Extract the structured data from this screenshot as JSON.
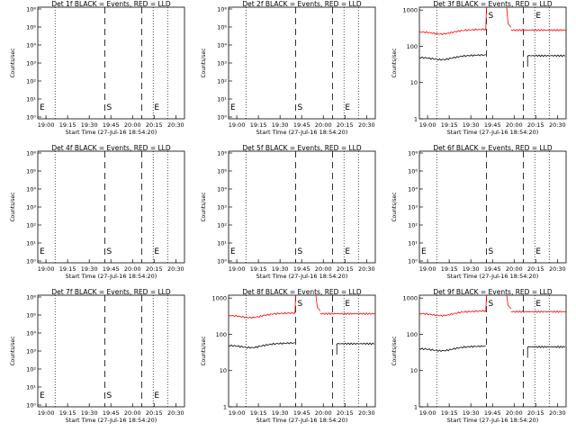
{
  "chart_data": [
    {
      "title": "Det 1f BLACK = Events, RED = LLD",
      "type": "line",
      "y_labels": [
        "10⁸",
        "10⁶",
        "10⁴",
        "10³",
        "10²",
        "10¹",
        "10⁰"
      ],
      "has_data": false,
      "xlabel": "Start Time (27-Jul-16 18:54:20)",
      "ylabel": "Counts/sec",
      "x_ticks": [
        "19:00",
        "19:15",
        "19:30",
        "19:45",
        "20:00",
        "20:15",
        "20:30"
      ],
      "markers": {
        "S": "S",
        "E": "E"
      }
    },
    {
      "title": "Det 2f BLACK = Events, RED = LLD",
      "type": "line",
      "y_labels": [
        "10⁸",
        "10⁶",
        "10⁴",
        "10³",
        "10²",
        "10¹",
        "10⁰"
      ],
      "has_data": false,
      "xlabel": "Start Time (27-Jul-16 18:54:20)",
      "ylabel": "Counts/sec",
      "x_ticks": [
        "19:00",
        "19:15",
        "19:30",
        "19:45",
        "20:00",
        "20:15",
        "20:30"
      ],
      "markers": {
        "S": "S",
        "E": "E"
      }
    },
    {
      "title": "Det 3f BLACK = Events, RED = LLD",
      "type": "line",
      "y_labels": [
        "1000",
        "100",
        "10",
        "1"
      ],
      "has_data": true,
      "series": [
        {
          "name": "Events",
          "color": "#000000",
          "level": 55
        },
        {
          "name": "LLD",
          "color": "#ff0000",
          "level": 280
        }
      ],
      "xlabel": "Start Time (27-Jul-16 18:54:20)",
      "ylabel": "Counts/sec",
      "x_ticks": [
        "19:00",
        "19:15",
        "19:30",
        "19:45",
        "20:00",
        "20:15",
        "20:30"
      ],
      "markers": {
        "S": "S",
        "E": "E"
      }
    },
    {
      "title": "Det 4f BLACK = Events, RED = LLD",
      "type": "line",
      "y_labels": [
        "10⁸",
        "10⁶",
        "10⁴",
        "10³",
        "10²",
        "10¹",
        "10⁰"
      ],
      "has_data": false,
      "xlabel": "Start Time (27-Jul-16 18:54:20)",
      "ylabel": "Counts/sec",
      "x_ticks": [
        "19:00",
        "19:15",
        "19:30",
        "19:45",
        "20:00",
        "20:15",
        "20:30"
      ],
      "markers": {
        "S": "S",
        "E": "E"
      }
    },
    {
      "title": "Det 5f BLACK = Events, RED = LLD",
      "type": "line",
      "y_labels": [
        "10⁸",
        "10⁶",
        "10⁴",
        "10³",
        "10²",
        "10¹",
        "10⁰"
      ],
      "has_data": false,
      "xlabel": "Start Time (27-Jul-16 18:54:20)",
      "ylabel": "Counts/sec",
      "x_ticks": [
        "19:00",
        "19:15",
        "19:30",
        "19:45",
        "20:00",
        "20:15",
        "20:30"
      ],
      "markers": {
        "S": "S",
        "E": "E"
      }
    },
    {
      "title": "Det 6f BLACK = Events, RED = LLD",
      "type": "line",
      "y_labels": [
        "10⁸",
        "10⁶",
        "10⁴",
        "10³",
        "10²",
        "10¹",
        "10⁰"
      ],
      "has_data": false,
      "xlabel": "Start Time (27-Jul-16 18:54:20)",
      "ylabel": "Counts/sec",
      "x_ticks": [
        "19:00",
        "19:15",
        "19:30",
        "19:45",
        "20:00",
        "20:15",
        "20:30"
      ],
      "markers": {
        "S": "S",
        "E": "E"
      }
    },
    {
      "title": "Det 7f BLACK = Events, RED = LLD",
      "type": "line",
      "y_labels": [
        "10⁸",
        "10⁶",
        "10⁴",
        "10³",
        "10²",
        "10¹",
        "10⁰"
      ],
      "has_data": false,
      "xlabel": "Start Time (27-Jul-16 18:54:20)",
      "ylabel": "Counts/sec",
      "x_ticks": [
        "19:00",
        "19:15",
        "19:30",
        "19:45",
        "20:00",
        "20:15",
        "20:30"
      ],
      "markers": {
        "S": "S",
        "E": "E"
      }
    },
    {
      "title": "Det 8f BLACK = Events, RED = LLD",
      "type": "line",
      "y_labels": [
        "1000",
        "100",
        "10",
        "1"
      ],
      "has_data": true,
      "series": [
        {
          "name": "Events",
          "color": "#000000",
          "level": 55
        },
        {
          "name": "LLD",
          "color": "#ff0000",
          "level": 370
        }
      ],
      "xlabel": "Start Time (27-Jul-16 18:54:20)",
      "ylabel": "Counts/sec",
      "x_ticks": [
        "19:00",
        "19:15",
        "19:30",
        "19:45",
        "20:00",
        "20:15",
        "20:30"
      ],
      "markers": {
        "S": "S",
        "E": "E"
      }
    },
    {
      "title": "Det 9f BLACK = Events, RED = LLD",
      "type": "line",
      "y_labels": [
        "1000",
        "100",
        "10",
        "1"
      ],
      "has_data": true,
      "series": [
        {
          "name": "Events",
          "color": "#000000",
          "level": 45
        },
        {
          "name": "LLD",
          "color": "#ff0000",
          "level": 420
        }
      ],
      "xlabel": "Start Time (27-Jul-16 18:54:20)",
      "ylabel": "Counts/sec",
      "x_ticks": [
        "19:00",
        "19:15",
        "19:30",
        "19:45",
        "20:00",
        "20:15",
        "20:30"
      ],
      "markers": {
        "S": "S",
        "E": "E"
      }
    }
  ]
}
